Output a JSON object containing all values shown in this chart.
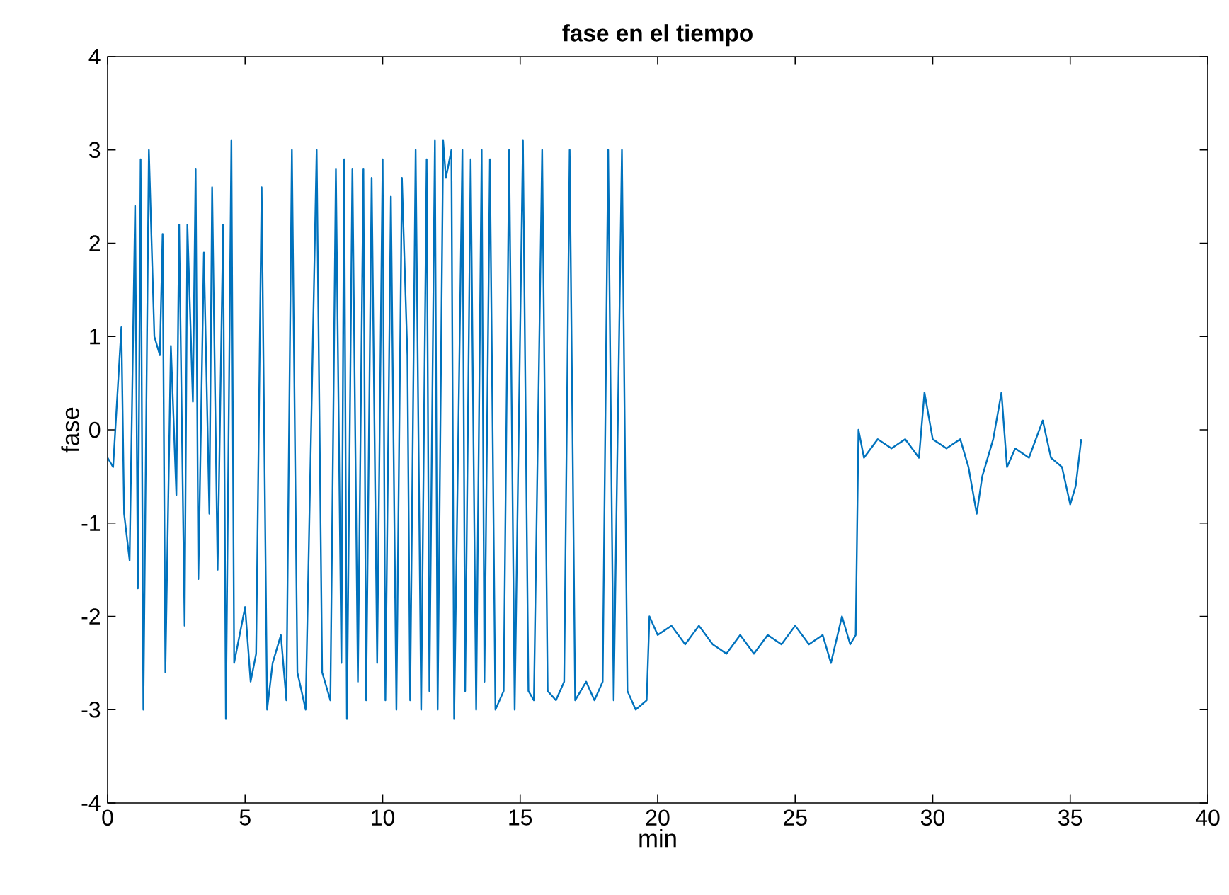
{
  "chart_data": {
    "type": "line",
    "title": "fase en el tiempo",
    "xlabel": "min",
    "ylabel": "fase",
    "xlim": [
      0,
      40
    ],
    "ylim": [
      -4,
      4
    ],
    "xticks": [
      0,
      5,
      10,
      15,
      20,
      25,
      30,
      35,
      40
    ],
    "yticks": [
      -4,
      -3,
      -2,
      -1,
      0,
      1,
      2,
      3,
      4
    ],
    "grid": false,
    "series": [
      {
        "color": "#0072bd",
        "x": [
          0,
          0.2,
          0.4,
          0.5,
          0.6,
          0.8,
          1.0,
          1.1,
          1.2,
          1.3,
          1.5,
          1.7,
          1.9,
          2.0,
          2.1,
          2.3,
          2.5,
          2.6,
          2.8,
          2.9,
          3.1,
          3.2,
          3.3,
          3.5,
          3.7,
          3.8,
          4.0,
          4.2,
          4.3,
          4.5,
          4.6,
          4.8,
          5.0,
          5.2,
          5.4,
          5.6,
          5.8,
          6.0,
          6.3,
          6.5,
          6.7,
          6.9,
          7.2,
          7.6,
          7.8,
          8.1,
          8.3,
          8.5,
          8.6,
          8.7,
          8.9,
          9.1,
          9.3,
          9.4,
          9.6,
          9.8,
          10.0,
          10.1,
          10.3,
          10.5,
          10.7,
          10.9,
          11.0,
          11.2,
          11.4,
          11.6,
          11.7,
          11.9,
          12.0,
          12.2,
          12.3,
          12.5,
          12.6,
          12.9,
          13.0,
          13.2,
          13.4,
          13.6,
          13.7,
          13.9,
          14.1,
          14.4,
          14.6,
          14.8,
          15.1,
          15.3,
          15.5,
          15.8,
          16.0,
          16.3,
          16.6,
          16.8,
          17.0,
          17.4,
          17.7,
          18.0,
          18.2,
          18.4,
          18.7,
          18.9,
          19.2,
          19.6,
          19.7,
          20.0,
          20.5,
          21.0,
          21.5,
          22.0,
          22.5,
          23.0,
          23.5,
          24.0,
          24.5,
          25.0,
          25.5,
          26.0,
          26.3,
          26.7,
          27.0,
          27.2,
          27.3,
          27.5,
          28.0,
          28.5,
          29.0,
          29.5,
          29.7,
          30.0,
          30.5,
          31.0,
          31.3,
          31.6,
          31.8,
          32.2,
          32.5,
          32.7,
          33.0,
          33.5,
          34.0,
          34.3,
          34.7,
          35.0,
          35.2,
          35.4
        ],
        "values": [
          -0.3,
          -0.4,
          0.6,
          1.1,
          -0.9,
          -1.4,
          2.4,
          -1.7,
          2.9,
          -3.0,
          3.0,
          1.0,
          0.8,
          2.1,
          -2.6,
          0.9,
          -0.7,
          2.2,
          -2.1,
          2.2,
          0.3,
          2.8,
          -1.6,
          1.9,
          -0.9,
          2.6,
          -1.5,
          2.2,
          -3.1,
          3.1,
          -2.5,
          -2.2,
          -1.9,
          -2.7,
          -2.4,
          2.6,
          -3.0,
          -2.5,
          -2.2,
          -2.9,
          3.0,
          -2.6,
          -3.0,
          3.0,
          -2.6,
          -2.9,
          2.8,
          -2.5,
          2.9,
          -3.1,
          2.8,
          -2.7,
          2.8,
          -2.9,
          2.7,
          -2.5,
          2.9,
          -2.9,
          2.5,
          -3.0,
          2.7,
          0.8,
          -2.9,
          3.0,
          -3.0,
          2.9,
          -2.8,
          3.1,
          -3.0,
          3.1,
          2.7,
          3.0,
          -3.1,
          3.0,
          -2.8,
          2.9,
          -3.0,
          3.0,
          -2.7,
          2.9,
          -3.0,
          -2.8,
          3.0,
          -3.0,
          3.1,
          -2.8,
          -2.9,
          3.0,
          -2.8,
          -2.9,
          -2.7,
          3.0,
          -2.9,
          -2.7,
          -2.9,
          -2.7,
          3.0,
          -2.9,
          3.0,
          -2.8,
          -3.0,
          -2.9,
          -2.0,
          -2.2,
          -2.1,
          -2.3,
          -2.1,
          -2.3,
          -2.4,
          -2.2,
          -2.4,
          -2.2,
          -2.3,
          -2.1,
          -2.3,
          -2.2,
          -2.5,
          -2.0,
          -2.3,
          -2.2,
          0.0,
          -0.3,
          -0.1,
          -0.2,
          -0.1,
          -0.3,
          0.4,
          -0.1,
          -0.2,
          -0.1,
          -0.4,
          -0.9,
          -0.5,
          -0.1,
          0.4,
          -0.4,
          -0.2,
          -0.3,
          0.1,
          -0.3,
          -0.4,
          -0.8,
          -0.6,
          -0.1
        ]
      }
    ]
  }
}
